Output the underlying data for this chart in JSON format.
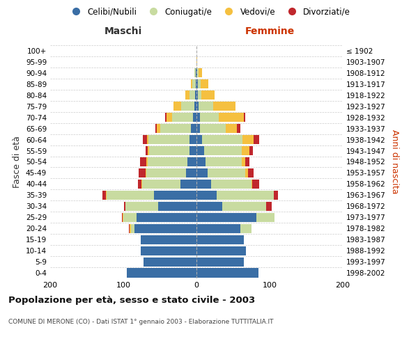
{
  "age_groups": [
    "0-4",
    "5-9",
    "10-14",
    "15-19",
    "20-24",
    "25-29",
    "30-34",
    "35-39",
    "40-44",
    "45-49",
    "50-54",
    "55-59",
    "60-64",
    "65-69",
    "70-74",
    "75-79",
    "80-84",
    "85-89",
    "90-94",
    "95-99",
    "100+"
  ],
  "birth_years": [
    "1998-2002",
    "1993-1997",
    "1988-1992",
    "1983-1987",
    "1978-1982",
    "1973-1977",
    "1968-1972",
    "1963-1967",
    "1958-1962",
    "1953-1957",
    "1948-1952",
    "1943-1947",
    "1938-1942",
    "1933-1937",
    "1928-1932",
    "1923-1927",
    "1918-1922",
    "1913-1917",
    "1908-1912",
    "1903-1907",
    "≤ 1902"
  ],
  "male_celibi": [
    95,
    72,
    76,
    76,
    85,
    82,
    52,
    58,
    22,
    14,
    12,
    10,
    10,
    8,
    5,
    3,
    2,
    1,
    1,
    0,
    0
  ],
  "male_coniugati": [
    0,
    0,
    0,
    0,
    5,
    18,
    45,
    65,
    52,
    55,
    55,
    55,
    56,
    42,
    28,
    18,
    8,
    5,
    2,
    0,
    0
  ],
  "male_vedovi": [
    0,
    0,
    0,
    0,
    1,
    1,
    0,
    1,
    1,
    1,
    2,
    2,
    2,
    4,
    8,
    10,
    5,
    2,
    0,
    0,
    0
  ],
  "male_divorziati": [
    0,
    0,
    0,
    0,
    1,
    1,
    2,
    5,
    5,
    9,
    8,
    3,
    5,
    2,
    2,
    0,
    0,
    0,
    0,
    0,
    0
  ],
  "female_nubili": [
    85,
    65,
    68,
    65,
    60,
    82,
    35,
    28,
    20,
    15,
    12,
    10,
    8,
    5,
    5,
    3,
    2,
    2,
    1,
    0,
    0
  ],
  "female_coniugate": [
    0,
    0,
    0,
    0,
    15,
    25,
    60,
    78,
    55,
    52,
    50,
    52,
    55,
    35,
    25,
    20,
    5,
    4,
    2,
    0,
    0
  ],
  "female_vedove": [
    0,
    0,
    0,
    0,
    0,
    0,
    0,
    0,
    1,
    3,
    5,
    10,
    15,
    15,
    35,
    30,
    18,
    10,
    5,
    1,
    0
  ],
  "female_divorziate": [
    0,
    0,
    0,
    0,
    0,
    0,
    8,
    5,
    10,
    8,
    5,
    5,
    8,
    5,
    2,
    0,
    0,
    0,
    0,
    0,
    0
  ],
  "colors": {
    "celibi": "#3a6ea5",
    "coniugati": "#c8dba0",
    "vedovi": "#f5c040",
    "divorziati": "#c0272d"
  },
  "title": "Popolazione per età, sesso e stato civile - 2003",
  "subtitle": "COMUNE DI MERONE (CO) - Dati ISTAT 1° gennaio 2003 - Elaborazione TUTTITALIA.IT",
  "label_maschi": "Maschi",
  "label_femmine": "Femmine",
  "ylabel_left": "Fasce di età",
  "ylabel_right": "Anni di nascita",
  "xlim": 200,
  "background_color": "#ffffff",
  "grid_color": "#cccccc",
  "legend_labels": [
    "Celibi/Nubili",
    "Coniugati/e",
    "Vedovi/e",
    "Divorziati/e"
  ]
}
